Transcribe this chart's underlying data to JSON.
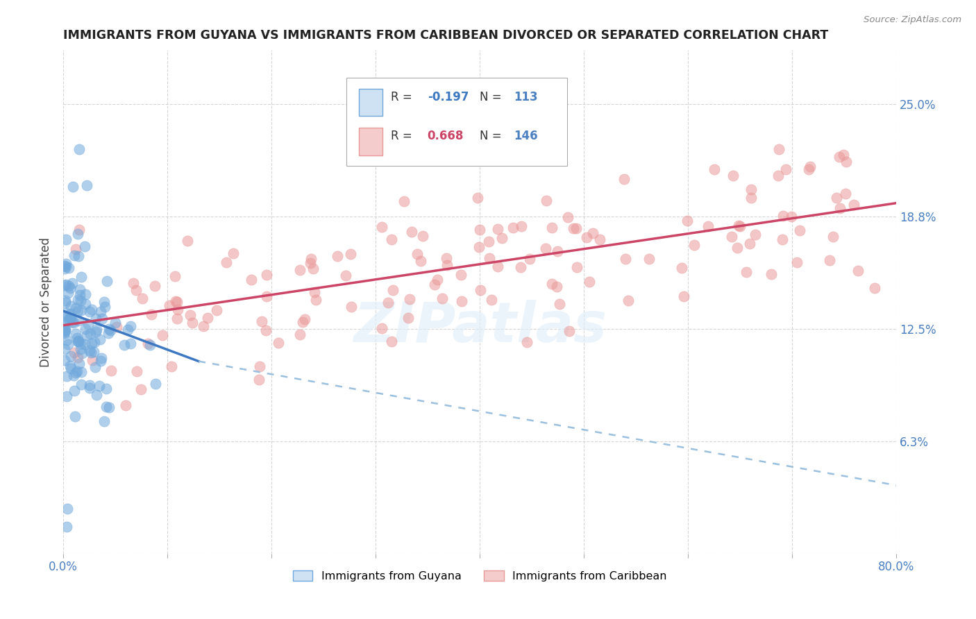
{
  "title": "IMMIGRANTS FROM GUYANA VS IMMIGRANTS FROM CARIBBEAN DIVORCED OR SEPARATED CORRELATION CHART",
  "source": "Source: ZipAtlas.com",
  "ylabel_label": "Divorced or Separated",
  "x_min": 0.0,
  "x_max": 0.8,
  "y_min": 0.0,
  "y_max": 0.28,
  "x_tick_positions": [
    0.0,
    0.1,
    0.2,
    0.3,
    0.4,
    0.5,
    0.6,
    0.7,
    0.8
  ],
  "x_tick_labels": [
    "0.0%",
    "",
    "",
    "",
    "",
    "",
    "",
    "",
    "80.0%"
  ],
  "y_tick_positions": [
    0.0,
    0.0625,
    0.125,
    0.1875,
    0.25
  ],
  "y_tick_labels_right": [
    "",
    "6.3%",
    "12.5%",
    "18.8%",
    "25.0%"
  ],
  "guyana_color": "#6fa8dc",
  "caribbean_color": "#ea9999",
  "guyana_N": 113,
  "caribbean_N": 146,
  "watermark": "ZIPatlas",
  "legend_box_color_guyana": "#cfe2f3",
  "legend_box_color_caribbean": "#f4cccc",
  "trend_guyana_color": "#3d78c2",
  "trend_caribbean_color": "#cc4466",
  "trend_guyana_dashed_color": "#9abfdf",
  "grid_color": "#cccccc",
  "title_color": "#222222",
  "axis_label_color": "#4a7fc1",
  "guyana_trend_x0": 0.0,
  "guyana_trend_y0": 0.135,
  "guyana_trend_x1": 0.13,
  "guyana_trend_y1": 0.107,
  "guyana_trend_ext_x1": 0.8,
  "guyana_trend_ext_y1": 0.038,
  "caribbean_trend_x0": 0.0,
  "caribbean_trend_y0": 0.127,
  "caribbean_trend_x1": 0.8,
  "caribbean_trend_y1": 0.195
}
